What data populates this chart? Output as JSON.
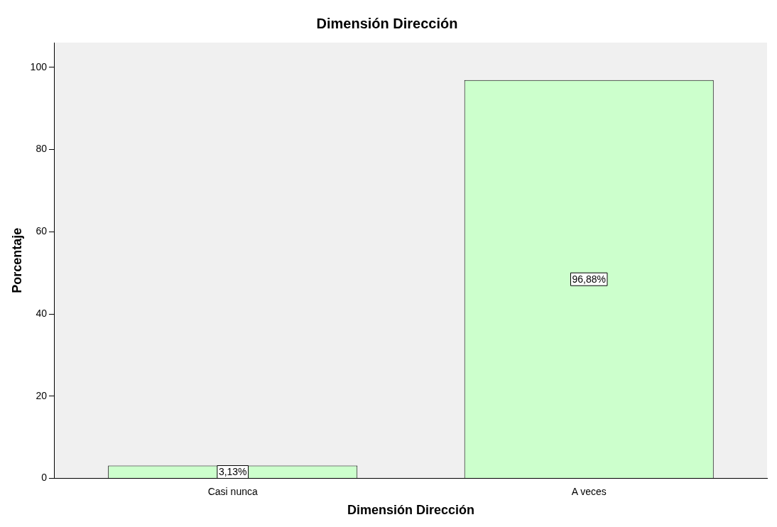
{
  "chart_data": {
    "type": "bar",
    "title": "Dimensión Dirección",
    "xlabel": "Dimensión Dirección",
    "ylabel": "Porcentaje",
    "categories": [
      "Casi nunca",
      "A veces"
    ],
    "values": [
      3.13,
      96.88
    ],
    "value_labels": [
      "3,13%",
      "96,88%"
    ],
    "color": "#ccffcc",
    "ylim": [
      0,
      106
    ],
    "yticks": [
      0,
      20,
      40,
      60,
      80,
      100
    ],
    "grid": false,
    "legend": false
  }
}
